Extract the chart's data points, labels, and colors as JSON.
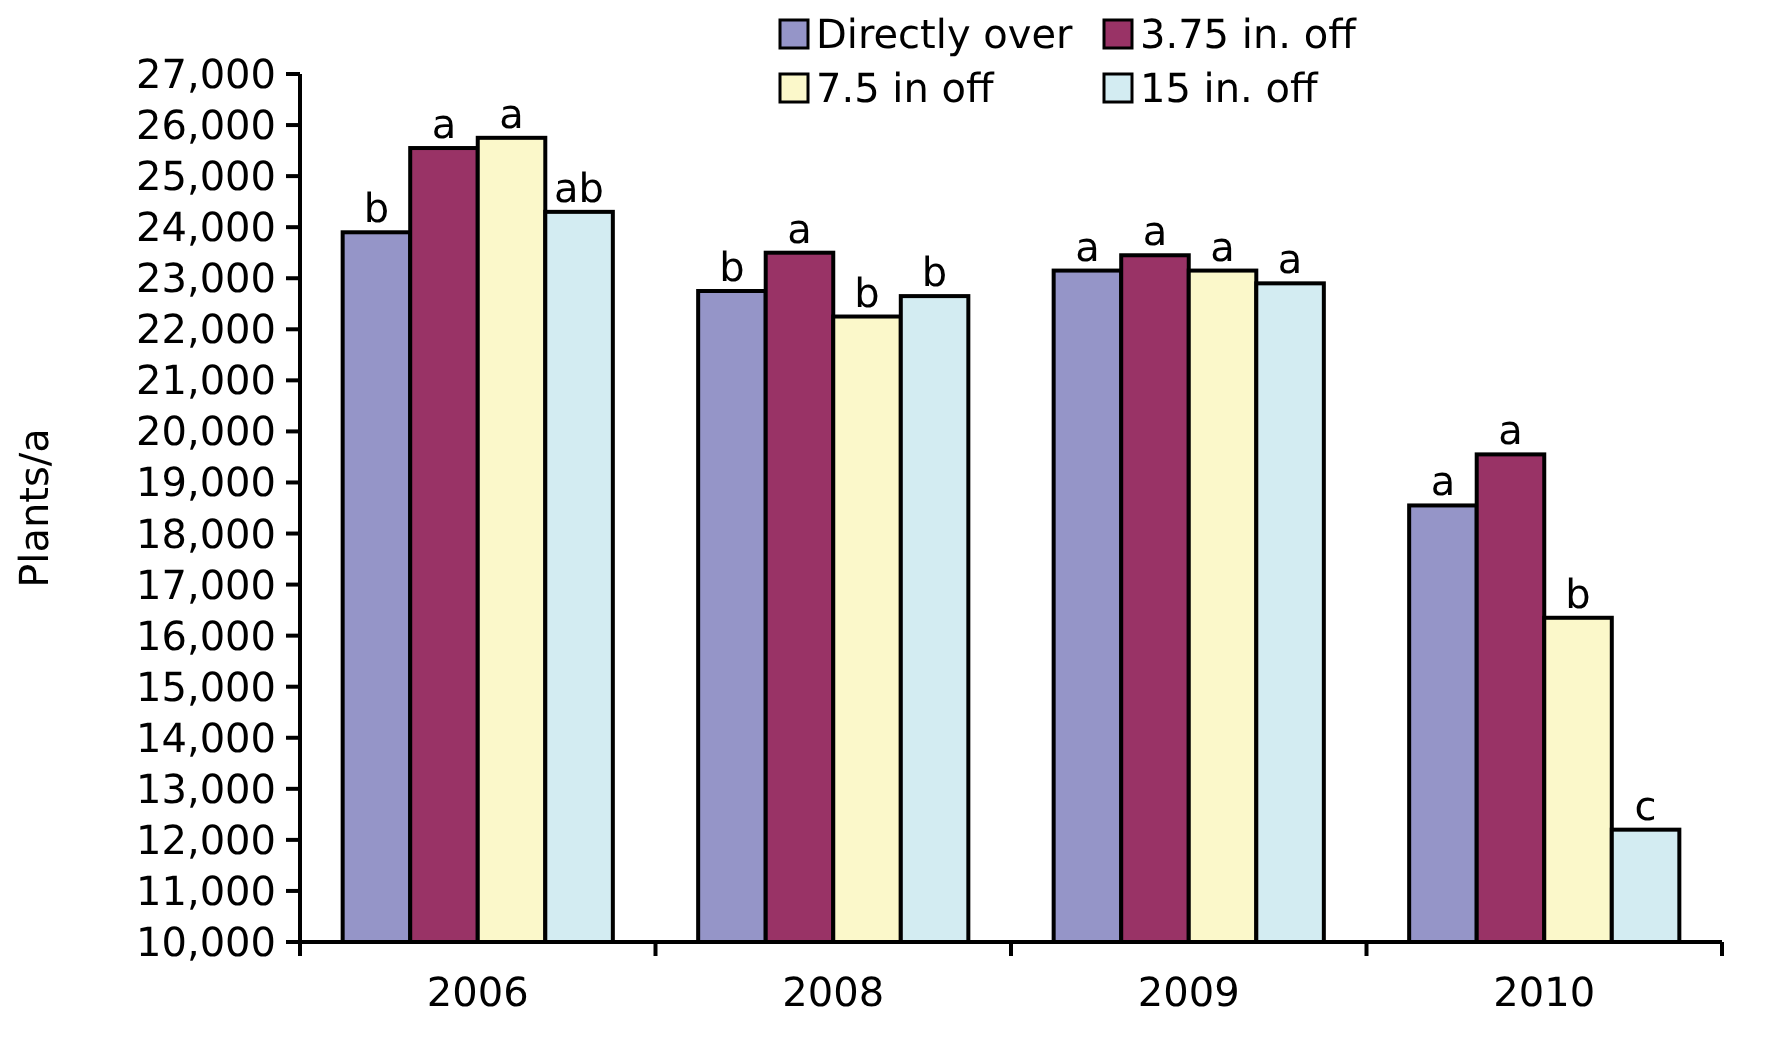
{
  "chart_data": {
    "type": "bar",
    "ylabel": "Plants/a",
    "categories": [
      "2006",
      "2008",
      "2009",
      "2010"
    ],
    "ylim": [
      10000,
      27000
    ],
    "yticks": [
      {
        "value": 10000,
        "label": "10,000"
      },
      {
        "value": 11000,
        "label": "11,000"
      },
      {
        "value": 12000,
        "label": "12,000"
      },
      {
        "value": 13000,
        "label": "13,000"
      },
      {
        "value": 14000,
        "label": "14,000"
      },
      {
        "value": 15000,
        "label": "15,000"
      },
      {
        "value": 16000,
        "label": "16,000"
      },
      {
        "value": 17000,
        "label": "17,000"
      },
      {
        "value": 18000,
        "label": "18,000"
      },
      {
        "value": 19000,
        "label": "19,000"
      },
      {
        "value": 20000,
        "label": "20,000"
      },
      {
        "value": 21000,
        "label": "21,000"
      },
      {
        "value": 22000,
        "label": "22,000"
      },
      {
        "value": 23000,
        "label": "23,000"
      },
      {
        "value": 24000,
        "label": "24,000"
      },
      {
        "value": 25000,
        "label": "25,000"
      },
      {
        "value": 26000,
        "label": "26,000"
      },
      {
        "value": 27000,
        "label": "27,000"
      }
    ],
    "grid": false,
    "legend": "top",
    "series": [
      {
        "name": "Directly over",
        "color": "#9595c8",
        "values": [
          23900,
          22750,
          23150,
          18550
        ],
        "value_labels": [
          "b",
          "b",
          "a",
          "a"
        ]
      },
      {
        "name": "3.75 in. off",
        "color": "#993366",
        "values": [
          25550,
          23500,
          23450,
          19550
        ],
        "value_labels": [
          "a",
          "a",
          "a",
          "a"
        ]
      },
      {
        "name": "7.5 in off",
        "color": "#fbf8ca",
        "values": [
          25750,
          22250,
          23150,
          16350
        ],
        "value_labels": [
          "a",
          "b",
          "a",
          "b"
        ]
      },
      {
        "name": "15 in. off",
        "color": "#d3ecf2",
        "values": [
          24300,
          22650,
          22900,
          12200
        ],
        "value_labels": [
          "ab",
          "b",
          "a",
          "c"
        ]
      }
    ]
  }
}
